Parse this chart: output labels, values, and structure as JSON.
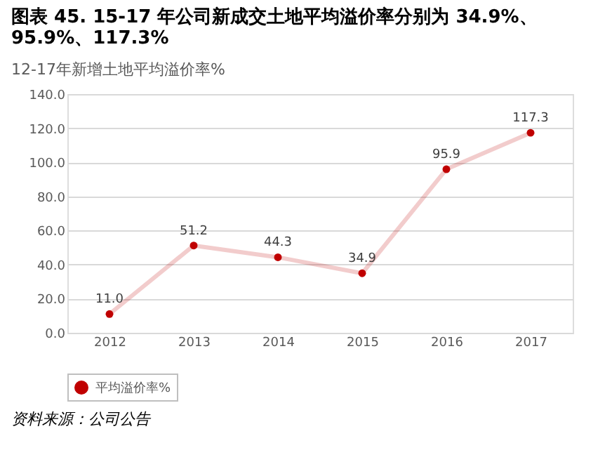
{
  "chart_data": {
    "type": "line",
    "title": "图表 45. 15-17 年公司新成交土地平均溢价率分别为 34.9%、95.9%、117.3%",
    "subtitle": "12-17年新增土地平均溢价率%",
    "categories": [
      "2012",
      "2013",
      "2014",
      "2015",
      "2016",
      "2017"
    ],
    "series": [
      {
        "name": "平均溢价率%",
        "color": "#c00000",
        "values": [
          11.0,
          51.2,
          44.3,
          34.9,
          95.9,
          117.3
        ],
        "value_labels": [
          "11.0",
          "51.2",
          "44.3",
          "34.9",
          "95.9",
          "117.3"
        ]
      }
    ],
    "ylim": [
      0,
      140
    ],
    "yticks": [
      {
        "value": 0,
        "label": "0.0"
      },
      {
        "value": 20,
        "label": "20.0"
      },
      {
        "value": 40,
        "label": "40.0"
      },
      {
        "value": 60,
        "label": "60.0"
      },
      {
        "value": 80,
        "label": "80.0"
      },
      {
        "value": 100,
        "label": "100.0"
      },
      {
        "value": 120,
        "label": "120.0"
      },
      {
        "value": 140,
        "label": "140.0"
      }
    ],
    "grid": "y",
    "legend": "bottom",
    "marker": "circle",
    "line_style": "solid",
    "annotations": [
      "资料来源：公司公告"
    ]
  }
}
